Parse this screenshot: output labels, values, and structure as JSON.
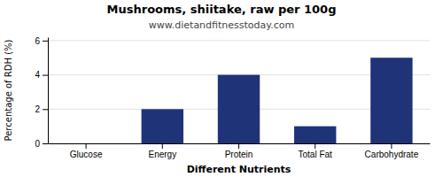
{
  "chart_data": {
    "type": "bar",
    "title": "Mushrooms, shiitake, raw per 100g",
    "subtitle": "www.dietandfitnesstoday.com",
    "xlabel": "Different Nutrients",
    "ylabel": "Percentage of RDH (%)",
    "categories": [
      "Glucose",
      "Energy",
      "Protein",
      "Total Fat",
      "Carbohydrate"
    ],
    "values": [
      0,
      2.0,
      4.0,
      1.0,
      5.0
    ],
    "color": "#1f3478",
    "ylim": [
      0,
      6.2
    ],
    "yticks": [
      0,
      2,
      4,
      6
    ],
    "grid": true
  }
}
